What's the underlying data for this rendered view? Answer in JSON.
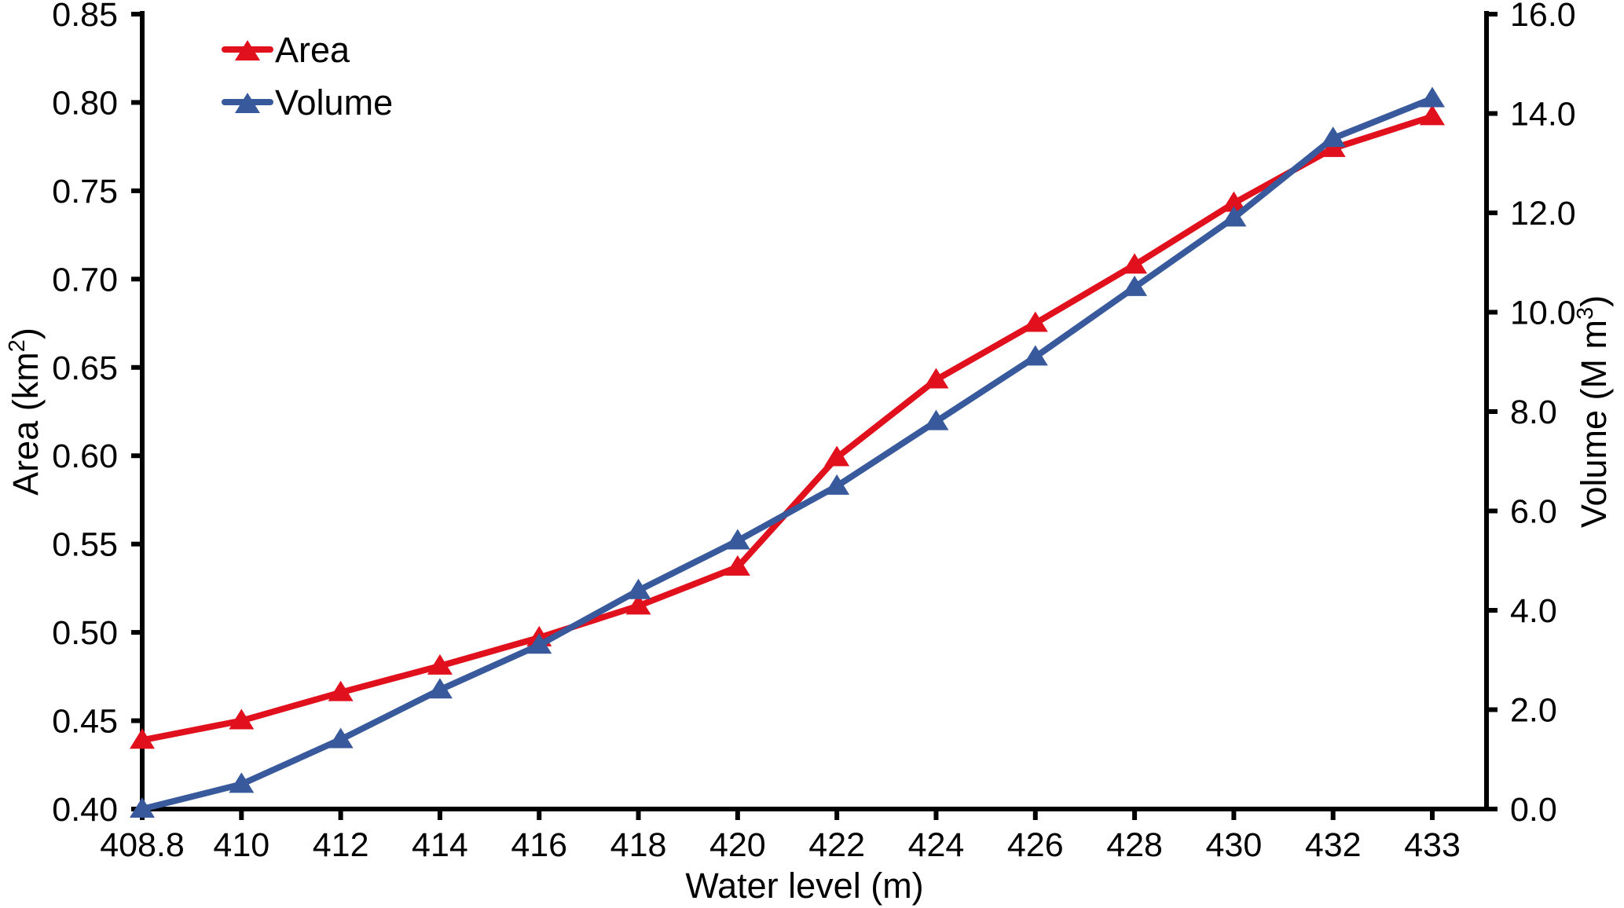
{
  "chart_data": {
    "type": "line",
    "title": "",
    "categories": [
      "408.8",
      "410",
      "412",
      "414",
      "416",
      "418",
      "420",
      "422",
      "424",
      "426",
      "428",
      "430",
      "432",
      "433"
    ],
    "xlabel": "Water level (m)",
    "ylabel_left": "Area (km²)",
    "ylabel_left_parts": {
      "pre": "Area (km",
      "sup": "2",
      "post": ")"
    },
    "ylabel_right": "Volume (M m³)",
    "ylabel_right_parts": {
      "pre": "Volume (M m",
      "sup": "3",
      "post": ")"
    },
    "y_left_axis": {
      "min": 0.4,
      "max": 0.85,
      "step": 0.05,
      "decimals": 2
    },
    "y_right_axis": {
      "min": 0.0,
      "max": 16.0,
      "step": 2.0,
      "decimals": 1
    },
    "grid": false,
    "legend_position": "top-left",
    "marker": "triangle-up",
    "series": [
      {
        "name": "Area",
        "axis": "left",
        "color": "#e1101d",
        "values": [
          0.439,
          0.45,
          0.466,
          0.481,
          0.497,
          0.515,
          0.537,
          0.599,
          0.643,
          0.675,
          0.708,
          0.743,
          0.774,
          0.792
        ]
      },
      {
        "name": "Volume",
        "axis": "right",
        "color": "#38599c",
        "values": [
          0.0,
          0.5,
          1.4,
          2.4,
          3.3,
          4.4,
          5.4,
          6.5,
          7.8,
          9.1,
          10.5,
          11.9,
          13.5,
          14.3
        ]
      }
    ],
    "colors": {
      "axis": "#000000",
      "text": "#000000",
      "background": "#ffffff"
    }
  }
}
